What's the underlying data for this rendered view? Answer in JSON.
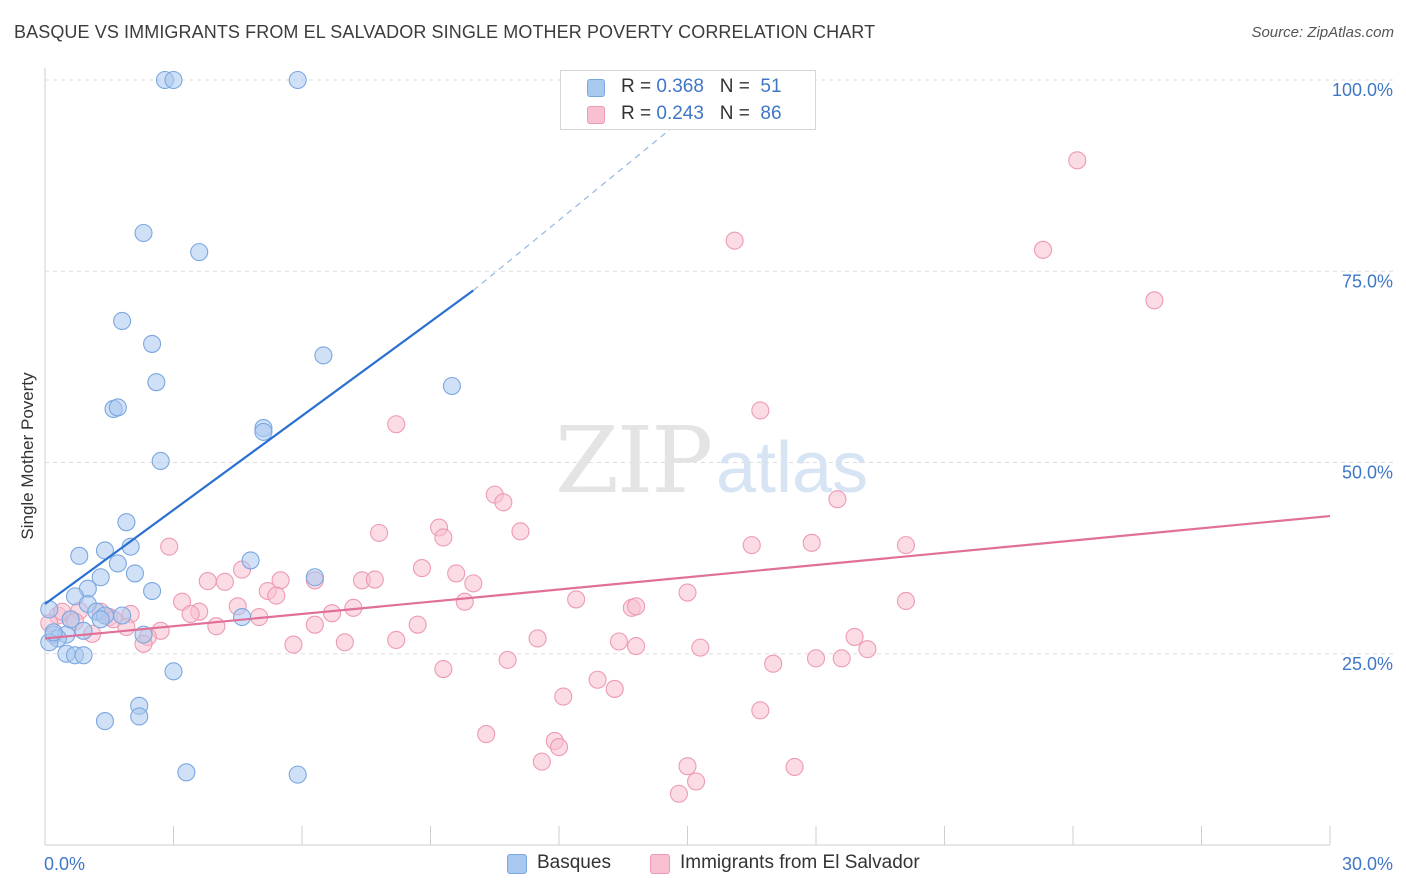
{
  "title": "BASQUE VS IMMIGRANTS FROM EL SALVADOR SINGLE MOTHER POVERTY CORRELATION CHART",
  "source": "Source: ZipAtlas.com",
  "watermark": {
    "zip": "ZIP",
    "atlas": "atlas"
  },
  "legend_top": [
    {
      "r_label": "R = ",
      "r_value": "0.368",
      "n_label": "N = ",
      "n_value": "51"
    },
    {
      "r_label": "R = ",
      "r_value": "0.243",
      "n_label": "N = ",
      "n_value": "86"
    }
  ],
  "legend_bottom": [
    {
      "label": "Basques"
    },
    {
      "label": "Immigrants from El Salvador"
    }
  ],
  "colors": {
    "basque_fill": "#a9c8f0",
    "basque_stroke": "#7aa7e0",
    "basque_line": "#2a6fd1",
    "salv_fill": "#f8c0d0",
    "salv_stroke": "#ee9ab2",
    "salv_line": "#e07099",
    "value_text": "#3f77c7",
    "grid": "#dddddd"
  },
  "chart_data": {
    "type": "scatter",
    "title": "BASQUE VS IMMIGRANTS FROM EL SALVADOR SINGLE MOTHER POVERTY CORRELATION CHART",
    "xlabel": "",
    "ylabel": "Single Mother Poverty",
    "xlim": [
      0,
      30
    ],
    "ylim": [
      0,
      102
    ],
    "x_tick_labels": [
      "0.0%",
      "30.0%"
    ],
    "y_tick_labels": [
      "25.0%",
      "50.0%",
      "75.0%",
      "100.0%"
    ],
    "y_ticks": [
      25,
      50,
      75,
      100
    ],
    "grid": "horizontal dashed",
    "legend_placement": "top-center and bottom",
    "series": [
      {
        "name": "Basques",
        "trend": {
          "x": [
            0,
            10
          ],
          "y": [
            31.5,
            72.5
          ],
          "dashed_to": [
            16,
            100
          ]
        },
        "points": [
          [
            2.8,
            100
          ],
          [
            3.0,
            100
          ],
          [
            5.9,
            100
          ],
          [
            2.3,
            80
          ],
          [
            3.6,
            77.5
          ],
          [
            1.8,
            68.5
          ],
          [
            2.5,
            65.5
          ],
          [
            6.5,
            64
          ],
          [
            2.6,
            60.5
          ],
          [
            9.5,
            60
          ],
          [
            1.6,
            57.0
          ],
          [
            1.7,
            57.2
          ],
          [
            5.1,
            54.5
          ],
          [
            5.1,
            54.0
          ],
          [
            2.7,
            50.2
          ],
          [
            1.9,
            42.2
          ],
          [
            2.0,
            39
          ],
          [
            1.4,
            38.5
          ],
          [
            0.8,
            37.8
          ],
          [
            4.8,
            37.2
          ],
          [
            1.7,
            36.8
          ],
          [
            2.1,
            35.5
          ],
          [
            6.3,
            35
          ],
          [
            1.3,
            35
          ],
          [
            2.5,
            33.2
          ],
          [
            1.0,
            33.5
          ],
          [
            0.7,
            32.5
          ],
          [
            1.0,
            31.5
          ],
          [
            0.1,
            30.8
          ],
          [
            1.2,
            30.5
          ],
          [
            1.4,
            30
          ],
          [
            1.8,
            30
          ],
          [
            1.3,
            29.5
          ],
          [
            4.6,
            29.8
          ],
          [
            0.9,
            28.0
          ],
          [
            0.2,
            27.5
          ],
          [
            0.5,
            27.5
          ],
          [
            2.3,
            27.5
          ],
          [
            0.3,
            27.0
          ],
          [
            0.1,
            26.5
          ],
          [
            0.5,
            25
          ],
          [
            0.7,
            24.8
          ],
          [
            0.9,
            24.8
          ],
          [
            3.0,
            22.7
          ],
          [
            2.2,
            18.2
          ],
          [
            2.2,
            16.8
          ],
          [
            1.4,
            16.2
          ],
          [
            3.3,
            9.5
          ],
          [
            5.9,
            9.2
          ],
          [
            0.6,
            29.5
          ],
          [
            0.2,
            27.8
          ]
        ]
      },
      {
        "name": "Immigrants from El Salvador",
        "trend": {
          "x": [
            0,
            30
          ],
          "y": [
            27,
            43
          ]
        },
        "points": [
          [
            24.1,
            89.5
          ],
          [
            16.1,
            79
          ],
          [
            23.3,
            77.8
          ],
          [
            25.9,
            71.2
          ],
          [
            16.7,
            56.8
          ],
          [
            8.2,
            55
          ],
          [
            10.5,
            45.8
          ],
          [
            10.7,
            44.8
          ],
          [
            18.5,
            45.2
          ],
          [
            9.2,
            41.5
          ],
          [
            7.8,
            40.8
          ],
          [
            11.1,
            41.0
          ],
          [
            9.3,
            40.2
          ],
          [
            2.9,
            39
          ],
          [
            16.5,
            39.2
          ],
          [
            17.9,
            39.5
          ],
          [
            20.1,
            39.2
          ],
          [
            8.8,
            36.2
          ],
          [
            4.6,
            36
          ],
          [
            9.6,
            35.5
          ],
          [
            3.8,
            34.5
          ],
          [
            4.2,
            34.4
          ],
          [
            5.5,
            34.6
          ],
          [
            6.3,
            34.6
          ],
          [
            7.4,
            34.6
          ],
          [
            7.7,
            34.7
          ],
          [
            10.0,
            34.2
          ],
          [
            5.2,
            33.2
          ],
          [
            5.4,
            32.6
          ],
          [
            12.4,
            32.1
          ],
          [
            15.0,
            33.0
          ],
          [
            3.2,
            31.8
          ],
          [
            3.6,
            30.5
          ],
          [
            4.5,
            31.2
          ],
          [
            7.2,
            31.0
          ],
          [
            9.8,
            31.8
          ],
          [
            13.7,
            31.0
          ],
          [
            13.8,
            31.2
          ],
          [
            20.1,
            31.9
          ],
          [
            0.8,
            30.6
          ],
          [
            1.3,
            30.5
          ],
          [
            2.0,
            30.2
          ],
          [
            1.5,
            29.8
          ],
          [
            0.3,
            30.0
          ],
          [
            0.6,
            29.5
          ],
          [
            1.6,
            29.5
          ],
          [
            3.4,
            30.2
          ],
          [
            5.0,
            29.8
          ],
          [
            6.7,
            30.3
          ],
          [
            4.0,
            28.6
          ],
          [
            6.3,
            28.8
          ],
          [
            8.7,
            28.8
          ],
          [
            1.9,
            28.5
          ],
          [
            2.7,
            28.0
          ],
          [
            2.4,
            27.2
          ],
          [
            1.1,
            27.6
          ],
          [
            7.0,
            26.5
          ],
          [
            8.2,
            26.8
          ],
          [
            11.5,
            27.0
          ],
          [
            13.4,
            26.6
          ],
          [
            13.8,
            26.0
          ],
          [
            15.3,
            25.8
          ],
          [
            18.9,
            27.2
          ],
          [
            19.2,
            25.6
          ],
          [
            5.8,
            26.2
          ],
          [
            2.3,
            26.3
          ],
          [
            10.8,
            24.2
          ],
          [
            17.0,
            23.7
          ],
          [
            18.0,
            24.4
          ],
          [
            18.6,
            24.4
          ],
          [
            9.3,
            23.0
          ],
          [
            12.9,
            21.6
          ],
          [
            13.3,
            20.4
          ],
          [
            12.1,
            19.4
          ],
          [
            16.7,
            17.6
          ],
          [
            10.3,
            14.5
          ],
          [
            11.9,
            13.6
          ],
          [
            12.0,
            12.8
          ],
          [
            11.6,
            10.9
          ],
          [
            15.0,
            10.3
          ],
          [
            17.5,
            10.2
          ],
          [
            15.2,
            8.3
          ],
          [
            14.8,
            6.7
          ],
          [
            0.1,
            29.0
          ],
          [
            0.4,
            30.5
          ],
          [
            0.7,
            29.2
          ]
        ]
      }
    ]
  }
}
